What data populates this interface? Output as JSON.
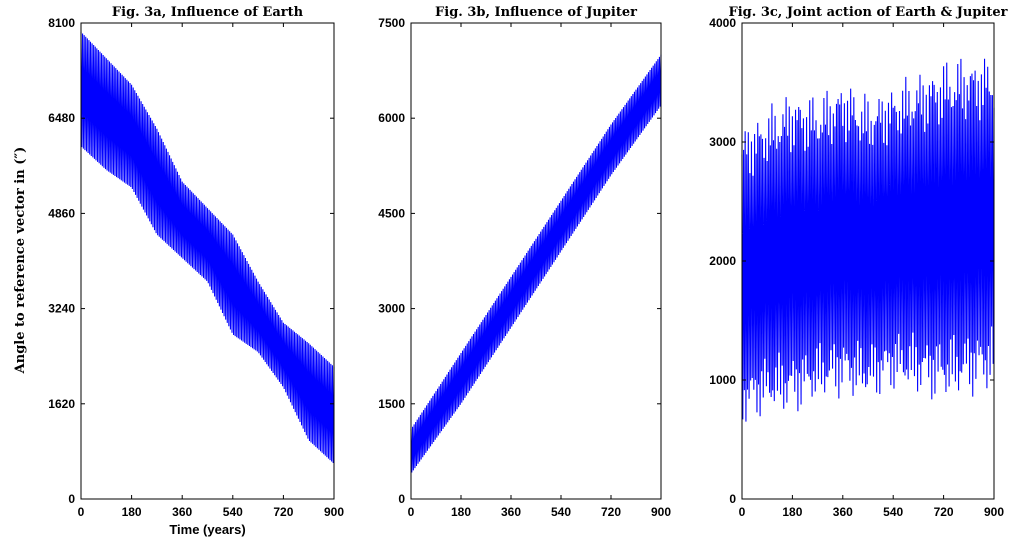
{
  "figure": {
    "ylabel": "Angle to reference vector in (″)",
    "xlabel": "Time (years)"
  },
  "chart_data": [
    {
      "type": "line",
      "title": "Fig. 3a, Influence of Earth",
      "xlabel": "Time (years)",
      "ylabel": "Angle to reference vector in (″)",
      "xlim": [
        0,
        900
      ],
      "ylim": [
        0,
        8100
      ],
      "xticks": [
        "0",
        "180",
        "360",
        "540",
        "720",
        "900"
      ],
      "yticks": [
        "0",
        "1620",
        "3240",
        "4860",
        "6480",
        "8100"
      ],
      "color": "#0000ff",
      "grid": false,
      "series": [
        {
          "x": [
            0,
            90,
            180,
            270,
            360,
            450,
            540,
            630,
            720,
            810,
            900
          ],
          "upper": [
            7950,
            7500,
            7050,
            6300,
            5400,
            4950,
            4500,
            3700,
            3000,
            2650,
            2250
          ],
          "lower": [
            6000,
            5600,
            5300,
            4500,
            4100,
            3700,
            2800,
            2500,
            1900,
            1000,
            600
          ]
        }
      ]
    },
    {
      "type": "line",
      "title": "Fig. 3b, Influence of Jupiter",
      "xlabel": "",
      "ylabel": "",
      "xlim": [
        0,
        900
      ],
      "ylim": [
        0,
        7500
      ],
      "xticks": [
        "0",
        "180",
        "360",
        "540",
        "720",
        "900"
      ],
      "yticks": [
        "0",
        "1500",
        "3000",
        "4500",
        "6000",
        "7500"
      ],
      "color": "#0000ff",
      "grid": false,
      "series": [
        {
          "x": [
            0,
            180,
            360,
            540,
            720,
            900
          ],
          "upper": [
            1100,
            2300,
            3500,
            4700,
            5900,
            7000
          ],
          "lower": [
            400,
            1500,
            2700,
            3900,
            5100,
            6200
          ]
        }
      ]
    },
    {
      "type": "line",
      "title": "Fig. 3c, Joint action of Earth & Jupiter",
      "xlabel": "",
      "ylabel": "",
      "xlim": [
        0,
        900
      ],
      "ylim": [
        0,
        4000
      ],
      "xticks": [
        "0",
        "180",
        "360",
        "540",
        "720",
        "900"
      ],
      "yticks": [
        "0",
        "1000",
        "2000",
        "3000",
        "4000"
      ],
      "color": "#0000ff",
      "grid": false,
      "series": [
        {
          "x": [
            0,
            90,
            180,
            270,
            360,
            450,
            540,
            630,
            720,
            810,
            900
          ],
          "upper": [
            3150,
            3300,
            3450,
            3400,
            3550,
            3400,
            3500,
            3600,
            3700,
            3750,
            3750
          ],
          "lower": [
            600,
            700,
            700,
            800,
            850,
            800,
            900,
            850,
            800,
            850,
            900
          ]
        }
      ]
    }
  ]
}
